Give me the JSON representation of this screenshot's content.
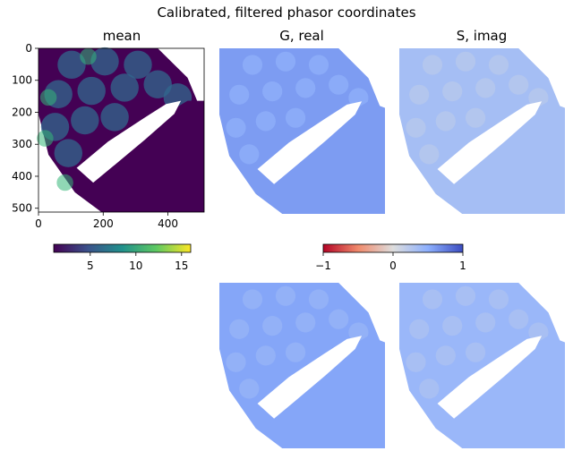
{
  "figure": {
    "suptitle": "Calibrated, filtered phasor coordinates"
  },
  "chart_data": [
    {
      "type": "heatmap",
      "title": "mean",
      "xlabel": "",
      "ylabel": "",
      "xlim": [
        0,
        512
      ],
      "ylim": [
        512,
        0
      ],
      "xticks": [
        0,
        200,
        400
      ],
      "yticks": [
        0,
        100,
        200,
        300,
        400,
        500
      ],
      "colormap": "viridis",
      "colorbar": {
        "range": [
          1,
          16
        ],
        "ticks": [
          5,
          10,
          15
        ],
        "orientation": "horizontal"
      },
      "axes_visible": true
    },
    {
      "type": "heatmap",
      "title": "G, real",
      "colormap": "coolwarm_r",
      "value_range": [
        -1,
        1
      ],
      "dominant_value": 0.6,
      "axes_visible": false
    },
    {
      "type": "heatmap",
      "title": "S, imag",
      "colormap": "coolwarm_r",
      "value_range": [
        -1,
        1
      ],
      "dominant_value": 0.35,
      "axes_visible": false
    },
    {
      "type": "heatmap",
      "title": "",
      "colormap": "coolwarm_r",
      "value_range": [
        -1,
        1
      ],
      "dominant_value": 0.55,
      "axes_visible": false
    },
    {
      "type": "heatmap",
      "title": "",
      "colormap": "coolwarm_r",
      "value_range": [
        -1,
        1
      ],
      "dominant_value": 0.42,
      "axes_visible": false
    }
  ],
  "shared_colorbar": {
    "colormap": "coolwarm_r",
    "range": [
      -1,
      1
    ],
    "ticks": [
      -1,
      0,
      1
    ],
    "tick_labels": [
      "−1",
      "0",
      "1"
    ],
    "orientation": "horizontal"
  },
  "colors": {
    "masked": "#ffffff",
    "mean_background": "#440154",
    "mean_cells": "#31688e",
    "mean_hot": "#35b779",
    "cool_high": "#3b4cc0",
    "cool_low": "#b40426",
    "neutral": "#dddddd"
  }
}
